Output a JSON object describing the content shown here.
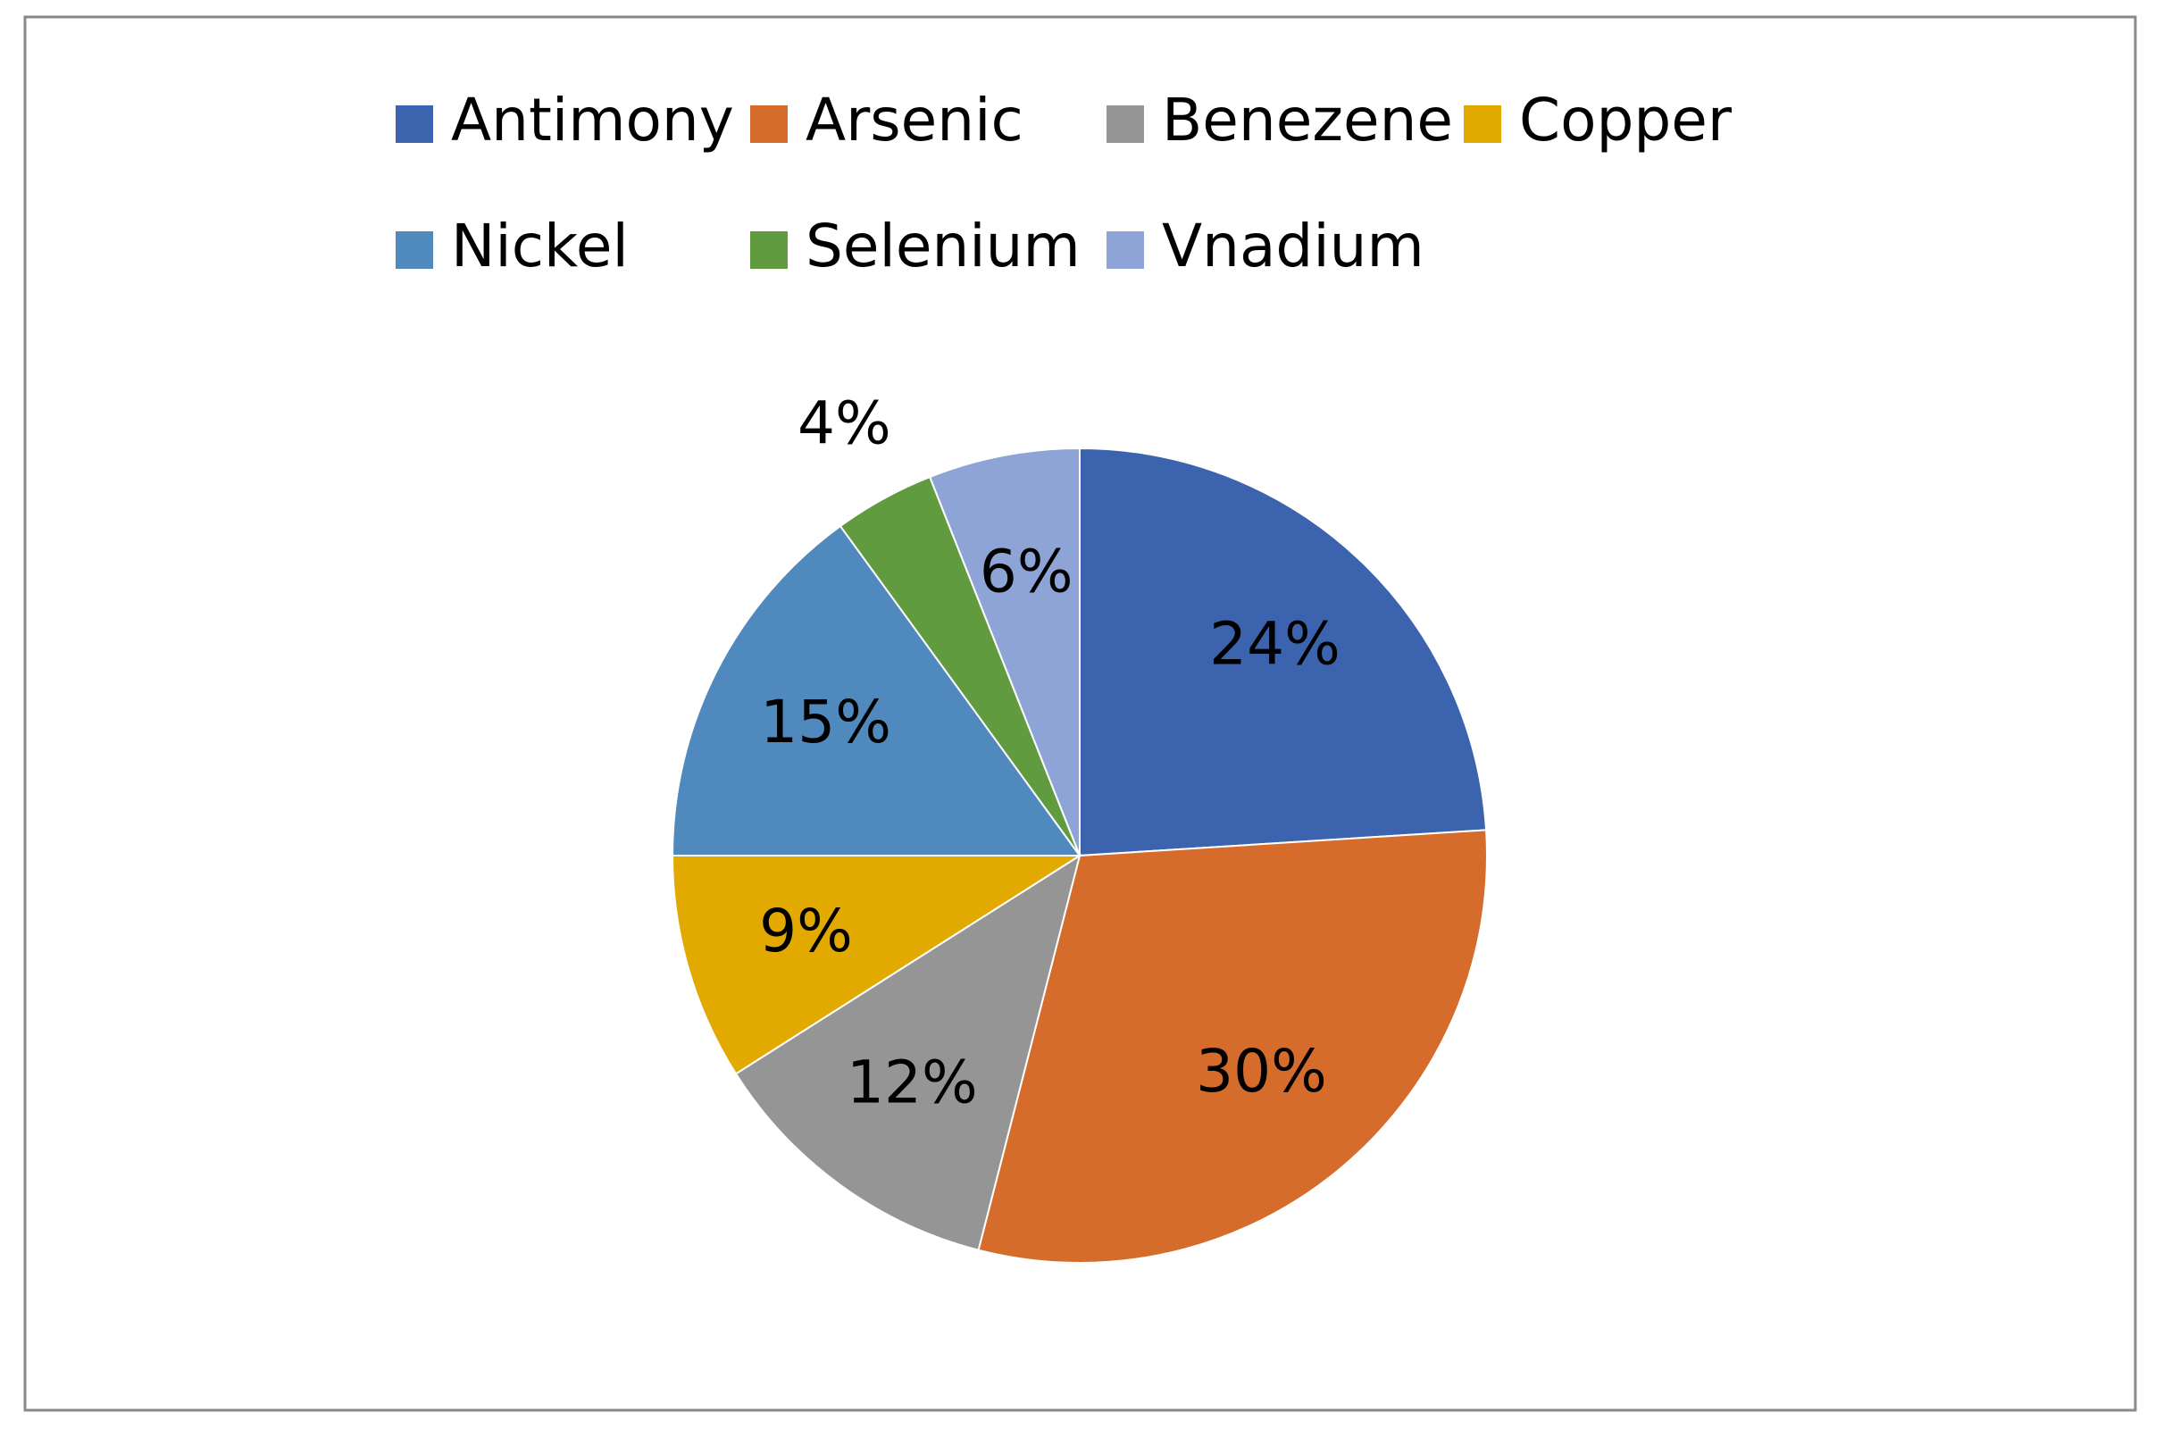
{
  "chart_data": {
    "type": "pie",
    "categories": [
      "Antimony",
      "Arsenic",
      "Benezene",
      "Copper",
      "Nickel",
      "Selenium",
      "Vnadium"
    ],
    "values": [
      24,
      30,
      12,
      9,
      15,
      4,
      6
    ],
    "value_labels": [
      "24%",
      "30%",
      "12%",
      "9%",
      "15%",
      "4%",
      "6%"
    ],
    "colors": [
      "#3c64ae",
      "#d56c2c",
      "#959595",
      "#e2aa00",
      "#4f89bd",
      "#619b3f",
      "#8fa4d6"
    ],
    "legend": "top"
  }
}
